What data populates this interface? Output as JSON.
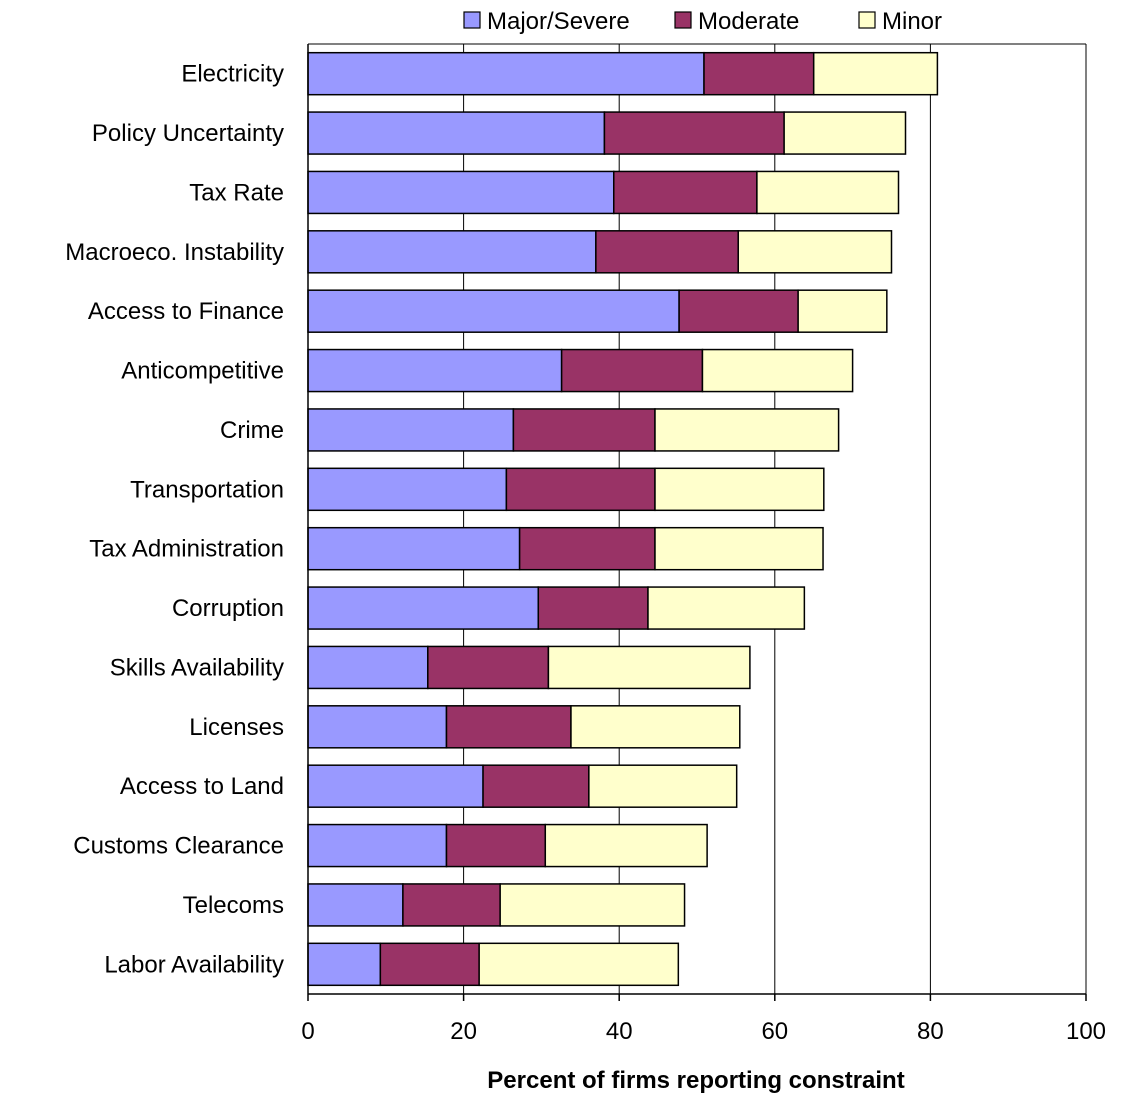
{
  "chart_data": {
    "type": "bar",
    "orientation": "horizontal",
    "stacked": true,
    "categories": [
      "Electricity",
      "Policy Uncertainty",
      "Tax Rate",
      "Macroeco. Instability",
      "Access to Finance",
      "Anticompetitive",
      "Crime",
      "Transportation",
      "Tax Administration",
      "Corruption",
      "Skills Availability",
      "Licenses",
      "Access to Land",
      "Customs Clearance",
      "Telecoms",
      "Labor Availability"
    ],
    "series": [
      {
        "name": "Major/Severe",
        "color": "#9999ff",
        "values": [
          50.9,
          38.1,
          39.3,
          37.0,
          47.7,
          32.6,
          26.4,
          25.5,
          27.2,
          29.6,
          15.4,
          17.8,
          22.5,
          17.8,
          12.2,
          9.3
        ]
      },
      {
        "name": "Moderate",
        "color": "#993366",
        "values": [
          14.1,
          23.1,
          18.4,
          18.3,
          15.3,
          18.1,
          18.2,
          19.1,
          17.4,
          14.1,
          15.5,
          16.0,
          13.6,
          12.7,
          12.5,
          12.7
        ]
      },
      {
        "name": "Minor",
        "color": "#ffffcc",
        "values": [
          15.9,
          15.6,
          18.2,
          19.7,
          11.4,
          19.3,
          23.6,
          21.7,
          21.6,
          20.1,
          25.9,
          21.7,
          19.0,
          20.8,
          23.7,
          25.6
        ]
      }
    ],
    "xlabel": "Percent of firms reporting constraint",
    "ylabel": "",
    "xlim": [
      0,
      100
    ],
    "xticks": [
      "0",
      "20",
      "40",
      "60",
      "80",
      "100"
    ],
    "gridlines": "vertical",
    "legend_position": "top"
  }
}
